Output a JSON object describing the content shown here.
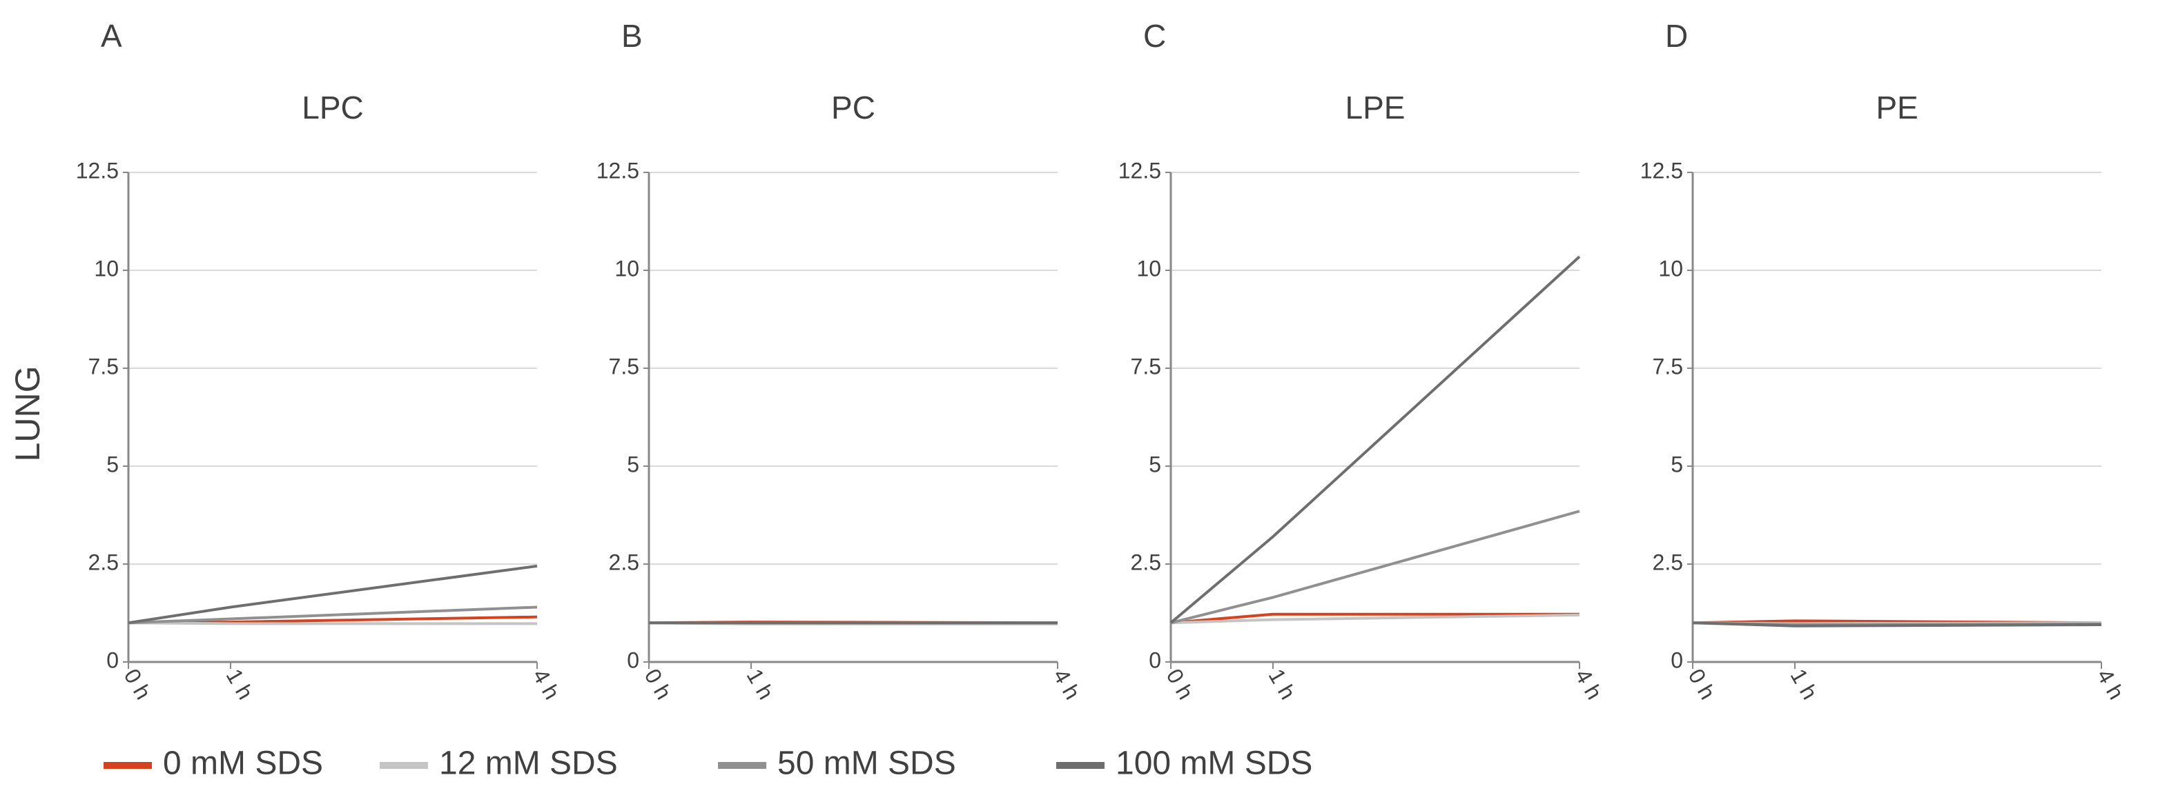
{
  "chart_data": [
    {
      "type": "line",
      "panel": "A",
      "title": "LPC",
      "ylabel": "LUNG",
      "x": [
        0,
        1,
        4
      ],
      "xlim": [
        0,
        4
      ],
      "xticks": [
        {
          "value": 0,
          "label": "0 h"
        },
        {
          "value": 1,
          "label": "1 h"
        },
        {
          "value": 4,
          "label": "4 h"
        }
      ],
      "ylim": [
        0,
        12.5
      ],
      "yticks": [
        0,
        2.5,
        5,
        7.5,
        10,
        12.5
      ],
      "grid": true,
      "series": [
        {
          "values": [
            1,
            1.02,
            1.15
          ]
        },
        {
          "values": [
            1,
            0.98,
            0.98
          ]
        },
        {
          "values": [
            1,
            1.1,
            1.4
          ]
        },
        {
          "values": [
            1,
            1.4,
            2.45
          ]
        }
      ]
    },
    {
      "type": "line",
      "panel": "B",
      "title": "PC",
      "x": [
        0,
        1,
        4
      ],
      "xlim": [
        0,
        4
      ],
      "xticks": [
        {
          "value": 0,
          "label": "0 h"
        },
        {
          "value": 1,
          "label": "1 h"
        },
        {
          "value": 4,
          "label": "4 h"
        }
      ],
      "ylim": [
        0,
        12.5
      ],
      "yticks": [
        0,
        2.5,
        5,
        7.5,
        10,
        12.5
      ],
      "grid": true,
      "series": [
        {
          "values": [
            1,
            1.02,
            1.0
          ]
        },
        {
          "values": [
            1,
            0.97,
            0.97
          ]
        },
        {
          "values": [
            1,
            1,
            1
          ]
        },
        {
          "values": [
            1,
            1,
            1
          ]
        }
      ]
    },
    {
      "type": "line",
      "panel": "C",
      "title": "LPE",
      "x": [
        0,
        1,
        4
      ],
      "xlim": [
        0,
        4
      ],
      "xticks": [
        {
          "value": 0,
          "label": "0 h"
        },
        {
          "value": 1,
          "label": "1 h"
        },
        {
          "value": 4,
          "label": "4 h"
        }
      ],
      "ylim": [
        0,
        12.5
      ],
      "yticks": [
        0,
        2.5,
        5,
        7.5,
        10,
        12.5
      ],
      "grid": true,
      "series": [
        {
          "values": [
            1,
            1.22,
            1.22
          ]
        },
        {
          "values": [
            1,
            1.08,
            1.2
          ]
        },
        {
          "values": [
            1,
            1.65,
            3.85
          ]
        },
        {
          "values": [
            1,
            3.2,
            10.35
          ]
        }
      ]
    },
    {
      "type": "line",
      "panel": "D",
      "title": "PE",
      "x": [
        0,
        1,
        4
      ],
      "xlim": [
        0,
        4
      ],
      "xticks": [
        {
          "value": 0,
          "label": "0 h"
        },
        {
          "value": 1,
          "label": "1 h"
        },
        {
          "value": 4,
          "label": "4 h"
        }
      ],
      "ylim": [
        0,
        12.5
      ],
      "yticks": [
        0,
        2.5,
        5,
        7.5,
        10,
        12.5
      ],
      "grid": true,
      "series": [
        {
          "values": [
            1,
            1.05,
            1.0
          ]
        },
        {
          "values": [
            1,
            0.98,
            1
          ]
        },
        {
          "values": [
            1,
            0.95,
            0.97
          ]
        },
        {
          "values": [
            1,
            0.92,
            0.95
          ]
        }
      ]
    }
  ],
  "legend": [
    {
      "name": "0 mM SDS",
      "color": "#d4421e"
    },
    {
      "name": "12 mM SDS",
      "color": "#c4c4c4"
    },
    {
      "name": "50 mM SDS",
      "color": "#909090"
    },
    {
      "name": "100 mM SDS",
      "color": "#6e6e6e"
    }
  ]
}
